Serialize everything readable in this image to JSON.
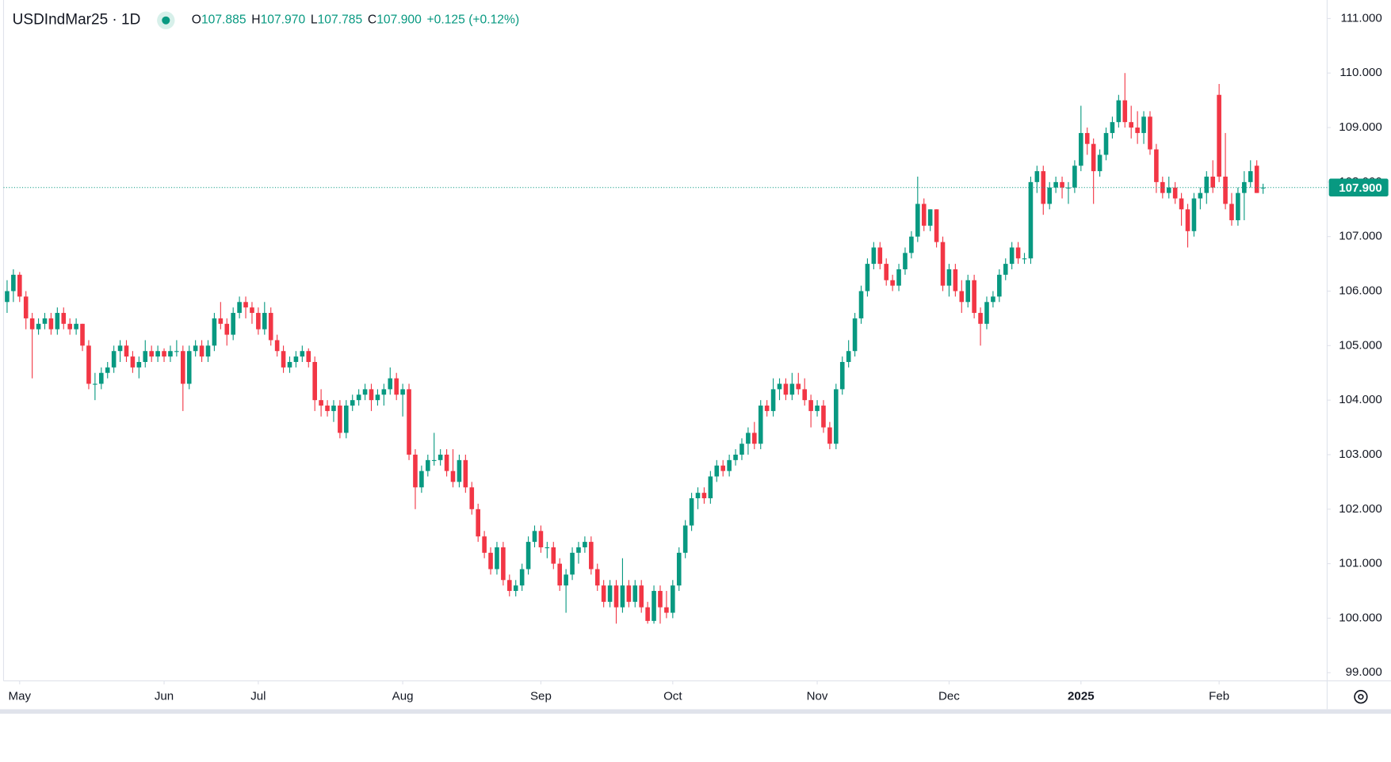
{
  "chart_data": {
    "type": "candlestick",
    "header": {
      "symbol": "USDIndMar25 · 1D",
      "ohlc": [
        {
          "key": "O",
          "value": "107.885"
        },
        {
          "key": "H",
          "value": "107.970"
        },
        {
          "key": "L",
          "value": "107.785"
        },
        {
          "key": "C",
          "value": "107.900"
        }
      ],
      "change": "+0.125 (+0.12%)"
    },
    "up_color": "#089981",
    "down_color": "#f23645",
    "xlim": [
      -1.13,
      210.2
    ],
    "xticks": [
      {
        "value": 2,
        "label": "May"
      },
      {
        "value": 25,
        "label": "Jun"
      },
      {
        "value": 40,
        "label": "Jul"
      },
      {
        "value": 63,
        "label": "Aug"
      },
      {
        "value": 85,
        "label": "Sep"
      },
      {
        "value": 106,
        "label": "Oct"
      },
      {
        "value": 129,
        "label": "Nov"
      },
      {
        "value": 150,
        "label": "Dec"
      },
      {
        "value": 171,
        "label": "2025"
      },
      {
        "value": 193,
        "label": "Feb"
      }
    ],
    "ylim": [
      98.85,
      111.34
    ],
    "yticks": [
      {
        "value": 99,
        "label": "99.000"
      },
      {
        "value": 100,
        "label": "100.000"
      },
      {
        "value": 101,
        "label": "101.000"
      },
      {
        "value": 102,
        "label": "102.000"
      },
      {
        "value": 103,
        "label": "103.000"
      },
      {
        "value": 104,
        "label": "104.000"
      },
      {
        "value": 105,
        "label": "105.000"
      },
      {
        "value": 106,
        "label": "106.000"
      },
      {
        "value": 107,
        "label": "107.000"
      },
      {
        "value": 108,
        "label": "108.000"
      },
      {
        "value": 109,
        "label": "109.000"
      },
      {
        "value": 110,
        "label": "110.000"
      },
      {
        "value": 111,
        "label": "111.000"
      }
    ],
    "last_price": {
      "value": 107.9,
      "label": "107.900"
    },
    "candles": [
      [
        105.8,
        106.2,
        105.6,
        106.0
      ],
      [
        106.0,
        106.4,
        105.8,
        106.3
      ],
      [
        106.3,
        106.35,
        105.8,
        105.9
      ],
      [
        105.9,
        106.0,
        105.3,
        105.5
      ],
      [
        105.5,
        105.6,
        104.4,
        105.3
      ],
      [
        105.3,
        105.5,
        105.2,
        105.4
      ],
      [
        105.4,
        105.6,
        105.3,
        105.5
      ],
      [
        105.5,
        105.6,
        105.2,
        105.3
      ],
      [
        105.3,
        105.7,
        105.2,
        105.6
      ],
      [
        105.6,
        105.7,
        105.3,
        105.4
      ],
      [
        105.4,
        105.5,
        105.2,
        105.3
      ],
      [
        105.3,
        105.5,
        105.2,
        105.4
      ],
      [
        105.4,
        105.4,
        104.9,
        105.0
      ],
      [
        105.0,
        105.1,
        104.2,
        104.3
      ],
      [
        104.3,
        104.5,
        104.0,
        104.3
      ],
      [
        104.3,
        104.6,
        104.2,
        104.5
      ],
      [
        104.5,
        104.7,
        104.4,
        104.6
      ],
      [
        104.6,
        105.0,
        104.5,
        104.9
      ],
      [
        104.9,
        105.1,
        104.7,
        105.0
      ],
      [
        105.0,
        105.1,
        104.7,
        104.8
      ],
      [
        104.8,
        104.9,
        104.5,
        104.6
      ],
      [
        104.6,
        104.8,
        104.4,
        104.7
      ],
      [
        104.7,
        105.1,
        104.6,
        104.9
      ],
      [
        104.9,
        105.0,
        104.7,
        104.8
      ],
      [
        104.8,
        105.0,
        104.7,
        104.9
      ],
      [
        104.9,
        104.95,
        104.7,
        104.8
      ],
      [
        104.8,
        105.0,
        104.7,
        104.9
      ],
      [
        104.9,
        105.1,
        104.8,
        104.9
      ],
      [
        104.9,
        105.0,
        103.8,
        104.3
      ],
      [
        104.3,
        105.0,
        104.2,
        104.9
      ],
      [
        104.9,
        105.1,
        104.8,
        105.0
      ],
      [
        105.0,
        105.1,
        104.7,
        104.8
      ],
      [
        104.8,
        105.1,
        104.7,
        105.0
      ],
      [
        105.0,
        105.6,
        104.9,
        105.5
      ],
      [
        105.5,
        105.8,
        105.3,
        105.4
      ],
      [
        105.4,
        105.5,
        105.0,
        105.2
      ],
      [
        105.2,
        105.7,
        105.1,
        105.6
      ],
      [
        105.6,
        105.9,
        105.5,
        105.8
      ],
      [
        105.8,
        105.9,
        105.5,
        105.7
      ],
      [
        105.7,
        105.8,
        105.4,
        105.6
      ],
      [
        105.6,
        105.7,
        105.2,
        105.3
      ],
      [
        105.3,
        105.8,
        105.2,
        105.6
      ],
      [
        105.6,
        105.7,
        105.0,
        105.1
      ],
      [
        105.1,
        105.2,
        104.8,
        104.9
      ],
      [
        104.9,
        105.0,
        104.5,
        104.6
      ],
      [
        104.6,
        104.8,
        104.5,
        104.7
      ],
      [
        104.7,
        104.9,
        104.6,
        104.8
      ],
      [
        104.8,
        105.0,
        104.7,
        104.9
      ],
      [
        104.9,
        104.95,
        104.6,
        104.7
      ],
      [
        104.7,
        104.8,
        103.8,
        104.0
      ],
      [
        104.0,
        104.2,
        103.7,
        103.9
      ],
      [
        103.9,
        104.0,
        103.7,
        103.8
      ],
      [
        103.8,
        104.0,
        103.6,
        103.9
      ],
      [
        103.9,
        104.0,
        103.3,
        103.4
      ],
      [
        103.4,
        104.0,
        103.3,
        103.9
      ],
      [
        103.9,
        104.1,
        103.8,
        104.0
      ],
      [
        104.0,
        104.2,
        103.9,
        104.1
      ],
      [
        104.1,
        104.3,
        104.0,
        104.2
      ],
      [
        104.2,
        104.3,
        103.8,
        104.0
      ],
      [
        104.0,
        104.2,
        103.9,
        104.1
      ],
      [
        104.1,
        104.3,
        103.9,
        104.2
      ],
      [
        104.2,
        104.6,
        104.1,
        104.4
      ],
      [
        104.4,
        104.5,
        104.0,
        104.1
      ],
      [
        104.1,
        104.3,
        103.7,
        104.2
      ],
      [
        104.2,
        104.3,
        102.9,
        103.0
      ],
      [
        103.0,
        103.1,
        102.0,
        102.4
      ],
      [
        102.4,
        102.8,
        102.3,
        102.7
      ],
      [
        102.7,
        103.0,
        102.6,
        102.9
      ],
      [
        102.9,
        103.4,
        102.8,
        102.9
      ],
      [
        102.9,
        103.1,
        102.8,
        103.0
      ],
      [
        103.0,
        103.1,
        102.6,
        102.7
      ],
      [
        102.7,
        103.1,
        102.4,
        102.5
      ],
      [
        102.5,
        103.0,
        102.4,
        102.9
      ],
      [
        102.9,
        103.0,
        102.3,
        102.4
      ],
      [
        102.4,
        102.5,
        101.9,
        102.0
      ],
      [
        102.0,
        102.1,
        101.4,
        101.5
      ],
      [
        101.5,
        101.6,
        101.1,
        101.2
      ],
      [
        101.2,
        101.3,
        100.8,
        100.9
      ],
      [
        100.9,
        101.4,
        100.8,
        101.3
      ],
      [
        101.3,
        101.4,
        100.6,
        100.7
      ],
      [
        100.7,
        100.8,
        100.4,
        100.5
      ],
      [
        100.5,
        100.7,
        100.4,
        100.6
      ],
      [
        100.6,
        101.0,
        100.5,
        100.9
      ],
      [
        100.9,
        101.5,
        100.8,
        101.4
      ],
      [
        101.4,
        101.7,
        101.3,
        101.6
      ],
      [
        101.6,
        101.7,
        101.2,
        101.3
      ],
      [
        101.3,
        101.4,
        101.1,
        101.3
      ],
      [
        101.3,
        101.4,
        100.9,
        101.0
      ],
      [
        101.0,
        101.1,
        100.5,
        100.6
      ],
      [
        100.6,
        100.9,
        100.1,
        100.8
      ],
      [
        100.8,
        101.3,
        100.7,
        101.2
      ],
      [
        101.2,
        101.4,
        101.0,
        101.3
      ],
      [
        101.3,
        101.5,
        101.2,
        101.4
      ],
      [
        101.4,
        101.5,
        100.8,
        100.9
      ],
      [
        100.9,
        101.0,
        100.5,
        100.6
      ],
      [
        100.6,
        100.7,
        100.2,
        100.3
      ],
      [
        100.3,
        100.7,
        100.2,
        100.6
      ],
      [
        100.6,
        100.7,
        99.9,
        100.2
      ],
      [
        100.2,
        101.1,
        100.1,
        100.6
      ],
      [
        100.6,
        100.7,
        100.2,
        100.3
      ],
      [
        100.3,
        100.7,
        100.2,
        100.6
      ],
      [
        100.6,
        100.7,
        100.1,
        100.2
      ],
      [
        100.2,
        100.3,
        99.9,
        99.95
      ],
      [
        99.95,
        100.6,
        99.9,
        100.5
      ],
      [
        100.5,
        100.6,
        99.9,
        100.2
      ],
      [
        100.2,
        100.5,
        100.0,
        100.1
      ],
      [
        100.1,
        100.7,
        100.0,
        100.6
      ],
      [
        100.6,
        101.3,
        100.5,
        101.2
      ],
      [
        101.2,
        101.8,
        101.1,
        101.7
      ],
      [
        101.7,
        102.3,
        101.6,
        102.2
      ],
      [
        102.2,
        102.4,
        102.0,
        102.3
      ],
      [
        102.3,
        102.4,
        102.1,
        102.2
      ],
      [
        102.2,
        102.7,
        102.1,
        102.6
      ],
      [
        102.6,
        102.9,
        102.5,
        102.8
      ],
      [
        102.8,
        102.9,
        102.6,
        102.7
      ],
      [
        102.7,
        103.0,
        102.6,
        102.9
      ],
      [
        102.9,
        103.1,
        102.8,
        103.0
      ],
      [
        103.0,
        103.3,
        102.9,
        103.2
      ],
      [
        103.2,
        103.5,
        103.0,
        103.4
      ],
      [
        103.4,
        103.6,
        103.1,
        103.2
      ],
      [
        103.2,
        104.0,
        103.1,
        103.9
      ],
      [
        103.9,
        104.0,
        103.7,
        103.8
      ],
      [
        103.8,
        104.4,
        103.7,
        104.2
      ],
      [
        104.2,
        104.4,
        104.0,
        104.3
      ],
      [
        104.3,
        104.4,
        104.0,
        104.1
      ],
      [
        104.1,
        104.5,
        104.0,
        104.3
      ],
      [
        104.3,
        104.5,
        104.1,
        104.2
      ],
      [
        104.2,
        104.4,
        103.9,
        104.0
      ],
      [
        104.0,
        104.1,
        103.5,
        103.8
      ],
      [
        103.8,
        104.0,
        103.7,
        103.9
      ],
      [
        103.9,
        104.0,
        103.4,
        103.5
      ],
      [
        103.5,
        103.6,
        103.1,
        103.2
      ],
      [
        103.2,
        104.3,
        103.1,
        104.2
      ],
      [
        104.2,
        104.8,
        104.1,
        104.7
      ],
      [
        104.7,
        105.1,
        104.6,
        104.9
      ],
      [
        104.9,
        105.6,
        104.8,
        105.5
      ],
      [
        105.5,
        106.1,
        105.4,
        106.0
      ],
      [
        106.0,
        106.6,
        105.9,
        106.5
      ],
      [
        106.5,
        106.9,
        106.4,
        106.8
      ],
      [
        106.8,
        106.9,
        106.4,
        106.5
      ],
      [
        106.5,
        106.6,
        106.1,
        106.2
      ],
      [
        106.2,
        106.3,
        106.0,
        106.1
      ],
      [
        106.1,
        106.5,
        106.0,
        106.4
      ],
      [
        106.4,
        106.8,
        106.3,
        106.7
      ],
      [
        106.7,
        107.1,
        106.6,
        107.0
      ],
      [
        107.0,
        108.1,
        106.9,
        107.6
      ],
      [
        107.6,
        107.7,
        107.1,
        107.2
      ],
      [
        107.2,
        107.5,
        107.1,
        107.5
      ],
      [
        107.5,
        107.5,
        106.8,
        106.9
      ],
      [
        106.9,
        107.0,
        106.0,
        106.1
      ],
      [
        106.1,
        106.5,
        105.9,
        106.4
      ],
      [
        106.4,
        106.5,
        105.9,
        106.0
      ],
      [
        106.0,
        106.2,
        105.6,
        105.8
      ],
      [
        105.8,
        106.3,
        105.7,
        106.2
      ],
      [
        106.2,
        106.3,
        105.5,
        105.6
      ],
      [
        105.6,
        105.7,
        105.0,
        105.4
      ],
      [
        105.4,
        105.9,
        105.3,
        105.8
      ],
      [
        105.8,
        106.0,
        105.7,
        105.9
      ],
      [
        105.9,
        106.4,
        105.8,
        106.3
      ],
      [
        106.3,
        106.6,
        106.2,
        106.5
      ],
      [
        106.5,
        106.9,
        106.4,
        106.8
      ],
      [
        106.8,
        106.9,
        106.5,
        106.6
      ],
      [
        106.6,
        106.7,
        106.5,
        106.6
      ],
      [
        106.6,
        108.1,
        106.5,
        108.0
      ],
      [
        108.0,
        108.3,
        107.8,
        108.2
      ],
      [
        108.2,
        108.3,
        107.4,
        107.6
      ],
      [
        107.6,
        108.0,
        107.5,
        107.9
      ],
      [
        107.9,
        108.1,
        107.8,
        108.0
      ],
      [
        108.0,
        108.1,
        107.7,
        107.9
      ],
      [
        107.9,
        108.0,
        107.6,
        107.9
      ],
      [
        107.9,
        108.4,
        107.8,
        108.3
      ],
      [
        108.3,
        109.4,
        108.2,
        108.9
      ],
      [
        108.9,
        109.0,
        108.5,
        108.7
      ],
      [
        108.7,
        108.8,
        107.6,
        108.2
      ],
      [
        108.2,
        108.6,
        108.1,
        108.5
      ],
      [
        108.5,
        109.0,
        108.4,
        108.9
      ],
      [
        108.9,
        109.2,
        108.8,
        109.1
      ],
      [
        109.1,
        109.6,
        109.0,
        109.5
      ],
      [
        109.5,
        110.0,
        109.0,
        109.1
      ],
      [
        109.1,
        109.4,
        108.8,
        109.0
      ],
      [
        109.0,
        109.3,
        108.7,
        108.9
      ],
      [
        108.9,
        109.3,
        108.7,
        109.2
      ],
      [
        109.2,
        109.3,
        108.5,
        108.6
      ],
      [
        108.6,
        108.7,
        107.8,
        108.0
      ],
      [
        108.0,
        108.1,
        107.7,
        107.8
      ],
      [
        107.8,
        108.1,
        107.7,
        107.9
      ],
      [
        107.9,
        108.0,
        107.6,
        107.7
      ],
      [
        107.7,
        107.8,
        107.2,
        107.5
      ],
      [
        107.5,
        107.6,
        106.8,
        107.1
      ],
      [
        107.1,
        107.8,
        107.0,
        107.7
      ],
      [
        107.7,
        107.9,
        107.5,
        107.8
      ],
      [
        107.8,
        108.2,
        107.6,
        108.1
      ],
      [
        108.1,
        108.4,
        107.8,
        107.9
      ],
      [
        109.6,
        109.8,
        108.0,
        108.1
      ],
      [
        108.1,
        108.9,
        107.5,
        107.6
      ],
      [
        107.6,
        107.8,
        107.2,
        107.3
      ],
      [
        107.3,
        107.9,
        107.2,
        107.8
      ],
      [
        107.8,
        108.2,
        107.3,
        108.0
      ],
      [
        108.0,
        108.4,
        107.9,
        108.2
      ],
      [
        108.3,
        108.4,
        107.8,
        107.8
      ],
      [
        107.885,
        107.97,
        107.785,
        107.9
      ]
    ]
  }
}
